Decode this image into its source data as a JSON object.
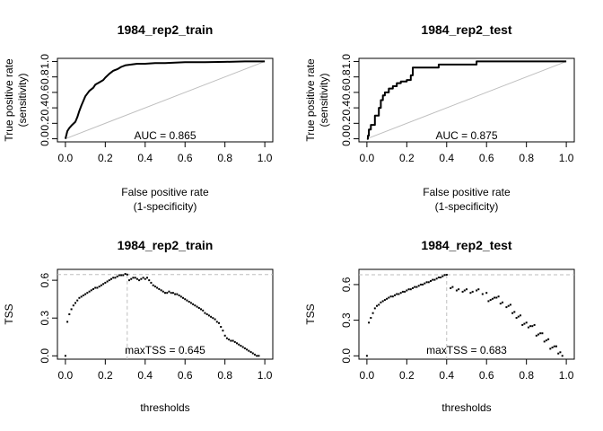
{
  "chart_data": [
    {
      "type": "line",
      "title": "1984_rep2_train",
      "xlabel": [
        "False positive rate",
        "(1-specificity)"
      ],
      "ylabel": [
        "True positive rate",
        "(sensitivity)"
      ],
      "xlim": [
        0,
        1
      ],
      "ylim": [
        0,
        1
      ],
      "xticks": [
        "0.0",
        "0.2",
        "0.4",
        "0.6",
        "0.8",
        "1.0"
      ],
      "yticks": [
        "0.0",
        "0.2",
        "0.4",
        "0.6",
        "0.8",
        "1.0"
      ],
      "annotation": "AUC = 0.865",
      "reference_line": "diagonal",
      "x": [
        0,
        0.005,
        0.01,
        0.02,
        0.03,
        0.05,
        0.06,
        0.07,
        0.08,
        0.09,
        0.1,
        0.12,
        0.14,
        0.15,
        0.17,
        0.19,
        0.2,
        0.22,
        0.24,
        0.26,
        0.28,
        0.3,
        0.33,
        0.36,
        0.4,
        0.45,
        0.5,
        0.6,
        0.7,
        0.8,
        0.9,
        1.0
      ],
      "y": [
        0,
        0.05,
        0.1,
        0.14,
        0.17,
        0.22,
        0.28,
        0.36,
        0.43,
        0.49,
        0.55,
        0.62,
        0.66,
        0.7,
        0.73,
        0.76,
        0.79,
        0.84,
        0.88,
        0.9,
        0.93,
        0.95,
        0.96,
        0.97,
        0.97,
        0.98,
        0.98,
        0.99,
        0.99,
        0.995,
        1.0,
        1.0
      ]
    },
    {
      "type": "line",
      "title": "1984_rep2_test",
      "xlabel": [
        "False positive rate",
        "(1-specificity)"
      ],
      "ylabel": [
        "True positive rate",
        "(sensitivity)"
      ],
      "xlim": [
        0,
        1
      ],
      "ylim": [
        0,
        1
      ],
      "xticks": [
        "0.0",
        "0.2",
        "0.4",
        "0.6",
        "0.8",
        "1.0"
      ],
      "yticks": [
        "0.0",
        "0.2",
        "0.4",
        "0.6",
        "0.8",
        "1.0"
      ],
      "annotation": "AUC = 0.875",
      "reference_line": "diagonal",
      "x": [
        0,
        0.005,
        0.005,
        0.01,
        0.01,
        0.02,
        0.02,
        0.04,
        0.04,
        0.06,
        0.06,
        0.07,
        0.07,
        0.08,
        0.08,
        0.09,
        0.09,
        0.11,
        0.11,
        0.13,
        0.13,
        0.15,
        0.15,
        0.17,
        0.17,
        0.2,
        0.2,
        0.22,
        0.22,
        0.23,
        0.23,
        0.25,
        0.25,
        0.36,
        0.36,
        0.55,
        0.55,
        1.0
      ],
      "y": [
        0,
        0,
        0.04,
        0.04,
        0.12,
        0.12,
        0.18,
        0.18,
        0.3,
        0.3,
        0.4,
        0.4,
        0.5,
        0.5,
        0.56,
        0.56,
        0.6,
        0.6,
        0.65,
        0.65,
        0.68,
        0.68,
        0.72,
        0.72,
        0.74,
        0.74,
        0.76,
        0.76,
        0.82,
        0.82,
        0.92,
        0.92,
        0.92,
        0.92,
        0.96,
        0.96,
        1.0,
        1.0
      ]
    },
    {
      "type": "scatter",
      "title": "1984_rep2_train",
      "xlabel": "thresholds",
      "ylabel": "TSS",
      "xlim": [
        0,
        1
      ],
      "ylim": [
        0,
        0.66
      ],
      "xticks": [
        "0.0",
        "0.2",
        "0.4",
        "0.6",
        "0.8",
        "1.0"
      ],
      "yticks": [
        "0.0",
        "0.3",
        "0.6"
      ],
      "annotation": "maxTSS = 0.645",
      "max_threshold": 0.31,
      "max_value": 0.645,
      "x": [
        0.0,
        0.01,
        0.02,
        0.03,
        0.04,
        0.05,
        0.06,
        0.07,
        0.08,
        0.09,
        0.1,
        0.11,
        0.12,
        0.13,
        0.14,
        0.15,
        0.16,
        0.17,
        0.18,
        0.19,
        0.2,
        0.21,
        0.22,
        0.23,
        0.24,
        0.25,
        0.26,
        0.27,
        0.28,
        0.29,
        0.3,
        0.31,
        0.32,
        0.33,
        0.34,
        0.35,
        0.36,
        0.37,
        0.38,
        0.39,
        0.4,
        0.41,
        0.42,
        0.43,
        0.44,
        0.45,
        0.46,
        0.47,
        0.48,
        0.49,
        0.5,
        0.51,
        0.52,
        0.53,
        0.54,
        0.55,
        0.56,
        0.57,
        0.58,
        0.59,
        0.6,
        0.61,
        0.62,
        0.63,
        0.64,
        0.65,
        0.66,
        0.67,
        0.68,
        0.69,
        0.7,
        0.71,
        0.72,
        0.73,
        0.74,
        0.75,
        0.76,
        0.77,
        0.78,
        0.79,
        0.8,
        0.81,
        0.82,
        0.83,
        0.84,
        0.85,
        0.86,
        0.87,
        0.88,
        0.89,
        0.9,
        0.91,
        0.92,
        0.93,
        0.94,
        0.95,
        0.96,
        0.97
      ],
      "y": [
        0.0,
        0.27,
        0.33,
        0.37,
        0.4,
        0.42,
        0.44,
        0.46,
        0.47,
        0.48,
        0.49,
        0.5,
        0.51,
        0.52,
        0.53,
        0.54,
        0.54,
        0.55,
        0.56,
        0.57,
        0.58,
        0.59,
        0.6,
        0.61,
        0.62,
        0.62,
        0.63,
        0.64,
        0.64,
        0.64,
        0.65,
        0.645,
        0.6,
        0.61,
        0.62,
        0.62,
        0.61,
        0.6,
        0.61,
        0.62,
        0.61,
        0.62,
        0.6,
        0.58,
        0.56,
        0.55,
        0.54,
        0.53,
        0.52,
        0.51,
        0.5,
        0.5,
        0.51,
        0.5,
        0.5,
        0.49,
        0.49,
        0.48,
        0.47,
        0.46,
        0.45,
        0.44,
        0.43,
        0.42,
        0.41,
        0.4,
        0.39,
        0.38,
        0.37,
        0.36,
        0.34,
        0.33,
        0.32,
        0.31,
        0.3,
        0.29,
        0.27,
        0.26,
        0.23,
        0.2,
        0.16,
        0.14,
        0.13,
        0.12,
        0.12,
        0.11,
        0.1,
        0.09,
        0.08,
        0.07,
        0.06,
        0.05,
        0.04,
        0.03,
        0.02,
        0.01,
        0.0,
        0.0
      ]
    },
    {
      "type": "scatter",
      "title": "1984_rep2_test",
      "xlabel": "thresholds",
      "ylabel": "TSS",
      "xlim": [
        0,
        1
      ],
      "ylim": [
        0,
        0.7
      ],
      "xticks": [
        "0.0",
        "0.2",
        "0.4",
        "0.6",
        "0.8",
        "1.0"
      ],
      "yticks": [
        "0.0",
        "0.3",
        "0.6"
      ],
      "annotation": "maxTSS = 0.683",
      "max_threshold": 0.4,
      "max_value": 0.683,
      "x": [
        0.0,
        0.01,
        0.02,
        0.03,
        0.04,
        0.05,
        0.06,
        0.07,
        0.08,
        0.09,
        0.1,
        0.11,
        0.12,
        0.13,
        0.14,
        0.15,
        0.16,
        0.17,
        0.18,
        0.19,
        0.2,
        0.21,
        0.22,
        0.23,
        0.24,
        0.25,
        0.26,
        0.27,
        0.28,
        0.29,
        0.3,
        0.31,
        0.32,
        0.33,
        0.34,
        0.35,
        0.36,
        0.37,
        0.38,
        0.39,
        0.4,
        0.42,
        0.43,
        0.45,
        0.46,
        0.48,
        0.49,
        0.5,
        0.52,
        0.53,
        0.55,
        0.56,
        0.58,
        0.6,
        0.61,
        0.62,
        0.63,
        0.64,
        0.65,
        0.66,
        0.67,
        0.68,
        0.7,
        0.71,
        0.72,
        0.73,
        0.74,
        0.75,
        0.76,
        0.77,
        0.78,
        0.79,
        0.8,
        0.81,
        0.82,
        0.83,
        0.84,
        0.85,
        0.86,
        0.87,
        0.88,
        0.89,
        0.9,
        0.91,
        0.92,
        0.93,
        0.94,
        0.95,
        0.96,
        0.97,
        0.98
      ],
      "y": [
        0.0,
        0.28,
        0.32,
        0.36,
        0.4,
        0.42,
        0.43,
        0.45,
        0.46,
        0.47,
        0.48,
        0.49,
        0.5,
        0.5,
        0.51,
        0.52,
        0.52,
        0.53,
        0.54,
        0.54,
        0.55,
        0.56,
        0.56,
        0.57,
        0.58,
        0.58,
        0.59,
        0.6,
        0.6,
        0.61,
        0.62,
        0.62,
        0.63,
        0.64,
        0.64,
        0.65,
        0.66,
        0.66,
        0.67,
        0.68,
        0.683,
        0.57,
        0.58,
        0.55,
        0.56,
        0.54,
        0.55,
        0.56,
        0.53,
        0.54,
        0.55,
        0.56,
        0.52,
        0.53,
        0.46,
        0.47,
        0.48,
        0.49,
        0.49,
        0.5,
        0.44,
        0.45,
        0.41,
        0.42,
        0.43,
        0.36,
        0.37,
        0.32,
        0.33,
        0.34,
        0.26,
        0.27,
        0.28,
        0.24,
        0.25,
        0.25,
        0.26,
        0.17,
        0.18,
        0.19,
        0.19,
        0.12,
        0.13,
        0.14,
        0.06,
        0.07,
        0.08,
        0.08,
        0.02,
        0.03,
        0.0
      ]
    }
  ]
}
